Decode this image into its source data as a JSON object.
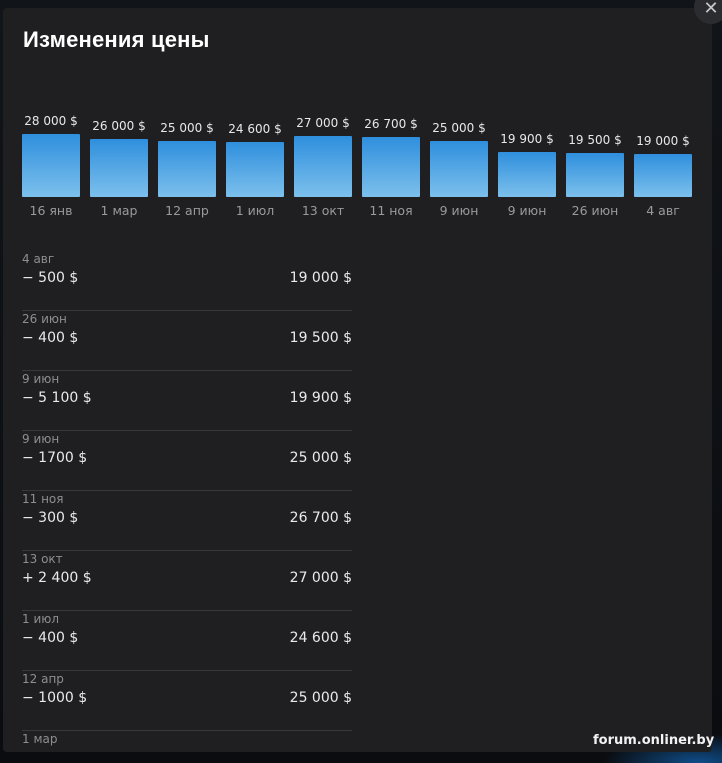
{
  "dialog": {
    "title": "Изменения цены",
    "close_icon": "close-icon"
  },
  "chart_data": {
    "type": "bar",
    "categories": [
      "16 янв",
      "1 мар",
      "12 апр",
      "1 июл",
      "13 окт",
      "11 ноя",
      "9 июн",
      "9 июн",
      "26 июн",
      "4 авг"
    ],
    "values": [
      28000,
      26000,
      25000,
      24600,
      27000,
      26700,
      25000,
      19900,
      19500,
      19000
    ],
    "labels": [
      "28 000 $",
      "26 000 $",
      "25 000 $",
      "24 600 $",
      "27 000 $",
      "26 700 $",
      "25 000 $",
      "19 900 $",
      "19 500 $",
      "19 000 $"
    ],
    "bar_color": [
      "#2f8fdd",
      "#7cc0ec"
    ]
  },
  "history": [
    {
      "date": "4 авг",
      "change": "− 500 $",
      "price": "19 000 $"
    },
    {
      "date": "26 июн",
      "change": "− 400 $",
      "price": "19 500 $"
    },
    {
      "date": "9 июн",
      "change": "− 5 100 $",
      "price": "19 900 $"
    },
    {
      "date": "9 июн",
      "change": "− 1700 $",
      "price": "25 000 $"
    },
    {
      "date": "11 ноя",
      "change": "− 300 $",
      "price": "26 700 $"
    },
    {
      "date": "13 окт",
      "change": "+ 2 400 $",
      "price": "27 000 $"
    },
    {
      "date": "1 июл",
      "change": "− 400 $",
      "price": "24 600 $"
    },
    {
      "date": "12 апр",
      "change": "− 1000 $",
      "price": "25 000 $"
    },
    {
      "date": "1 мар",
      "change": "",
      "price": ""
    }
  ],
  "watermark": "forum.onliner.by"
}
